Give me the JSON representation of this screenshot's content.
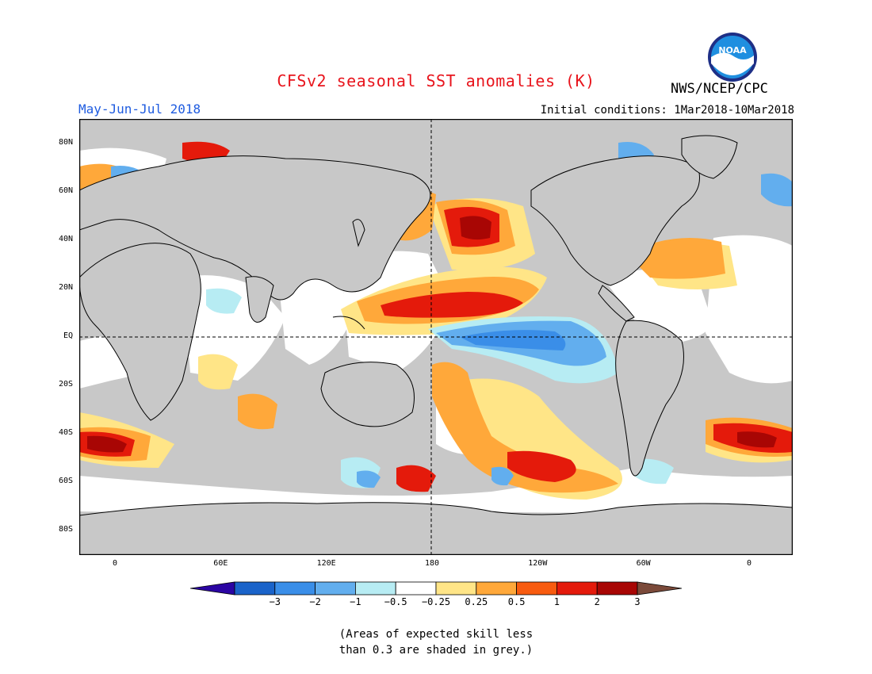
{
  "title": "CFSv2 seasonal SST anomalies (K)",
  "season": "May-Jun-Jul 2018",
  "initial_conditions": "Initial conditions: 1Mar2018-10Mar2018",
  "agency": "NWS/NCEP/CPC",
  "logo": {
    "icon": "noaa-logo",
    "text": "NOAA"
  },
  "map": {
    "lat_ticks": [
      "80N",
      "60N",
      "40N",
      "20N",
      "EQ",
      "20S",
      "40S",
      "60S",
      "80S"
    ],
    "lon_ticks": [
      "0",
      "60E",
      "120E",
      "180",
      "120W",
      "60W",
      "0"
    ],
    "land_color": "#c8c8c8",
    "border_color": "#000000"
  },
  "colorbar": {
    "labels": [
      "−3",
      "−2",
      "−1",
      "−0.5",
      "−0.25",
      "0.25",
      "0.5",
      "1",
      "2",
      "3"
    ],
    "colors": [
      "#2b05a3",
      "#1a63c9",
      "#3a8ee8",
      "#62aeee",
      "#b7ecf3",
      "#ffffff",
      "#ffe587",
      "#ffa83a",
      "#f85b0f",
      "#e41a0b",
      "#a80604",
      "#7b4a3a"
    ]
  },
  "note": {
    "line1": "(Areas of expected skill less",
    "line2": "than 0.3 are shaded in grey.)"
  }
}
